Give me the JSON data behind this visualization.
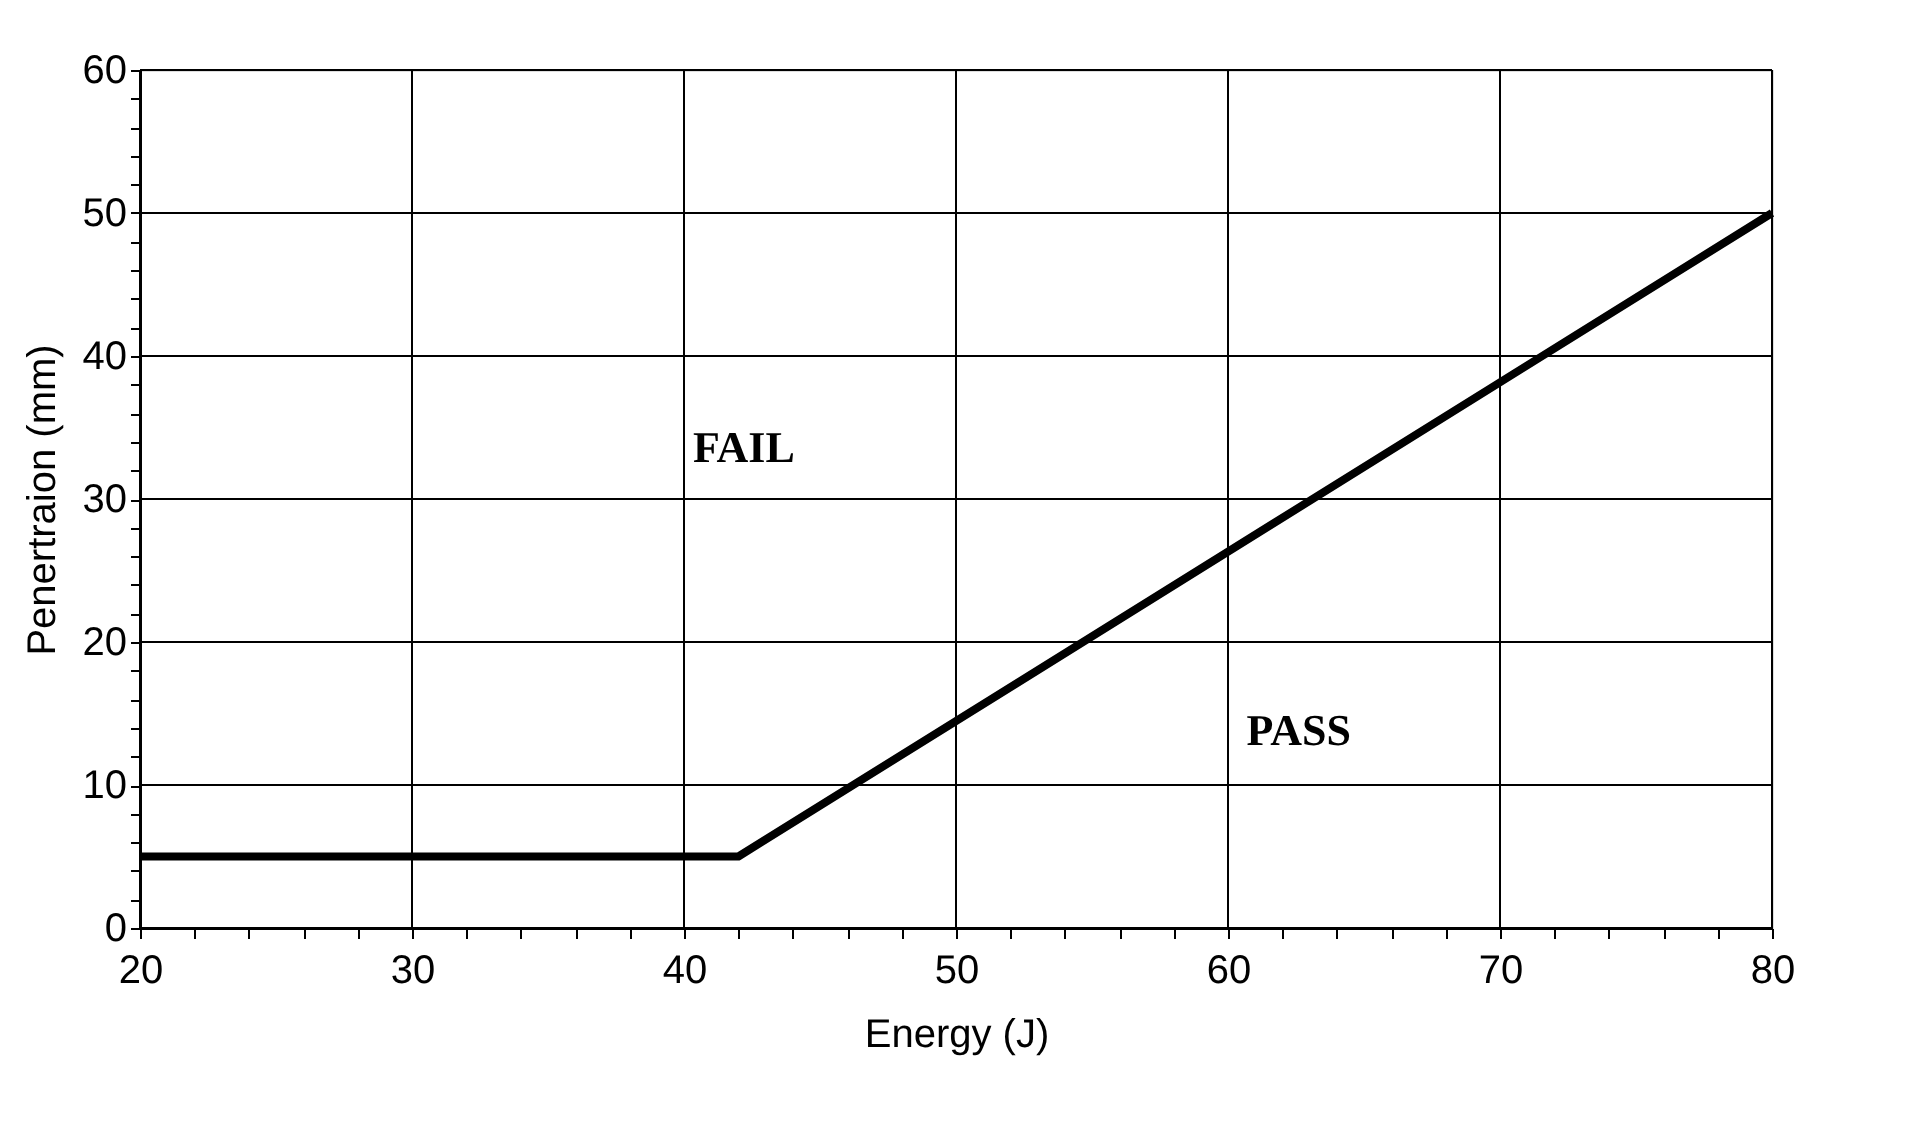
{
  "chart_data": {
    "type": "line",
    "xlabel": "Energy (J)",
    "ylabel": "Penertraion (mm)",
    "x": [
      20,
      42,
      80
    ],
    "series": [
      {
        "color": "#000000",
        "values": [
          5,
          5,
          50
        ]
      }
    ],
    "xlim": [
      20,
      80
    ],
    "ylim": [
      0,
      60
    ],
    "xticks": [
      20,
      {
        "value": 22,
        "label": null
      },
      {
        "value": 24,
        "label": null
      },
      {
        "value": 26,
        "label": null
      },
      {
        "value": 28,
        "label": null
      },
      30,
      {
        "value": 32,
        "label": null
      },
      {
        "value": 34,
        "label": null
      },
      {
        "value": 36,
        "label": null
      },
      {
        "value": 38,
        "label": null
      },
      40,
      {
        "value": 42,
        "label": null
      },
      {
        "value": 44,
        "label": null
      },
      {
        "value": 46,
        "label": null
      },
      {
        "value": 48,
        "label": null
      },
      50,
      {
        "value": 52,
        "label": null
      },
      {
        "value": 54,
        "label": null
      },
      {
        "value": 56,
        "label": null
      },
      {
        "value": 58,
        "label": null
      },
      60,
      {
        "value": 62,
        "label": null
      },
      {
        "value": 64,
        "label": null
      },
      {
        "value": 66,
        "label": null
      },
      {
        "value": 68,
        "label": null
      },
      70,
      {
        "value": 72,
        "label": null
      },
      {
        "value": 74,
        "label": null
      },
      {
        "value": 76,
        "label": null
      },
      {
        "value": 78,
        "label": null
      },
      80
    ],
    "yticks": [
      0,
      {
        "value": 2,
        "label": null
      },
      {
        "value": 4,
        "label": null
      },
      {
        "value": 6,
        "label": null
      },
      {
        "value": 8,
        "label": null
      },
      10,
      {
        "value": 12,
        "label": null
      },
      {
        "value": 14,
        "label": null
      },
      {
        "value": 16,
        "label": null
      },
      {
        "value": 18,
        "label": null
      },
      20,
      {
        "value": 22,
        "label": null
      },
      {
        "value": 24,
        "label": null
      },
      {
        "value": 26,
        "label": null
      },
      {
        "value": 28,
        "label": null
      },
      30,
      {
        "value": 32,
        "label": null
      },
      {
        "value": 34,
        "label": null
      },
      {
        "value": 36,
        "label": null
      },
      {
        "value": 38,
        "label": null
      },
      40,
      {
        "value": 42,
        "label": null
      },
      {
        "value": 44,
        "label": null
      },
      {
        "value": 46,
        "label": null
      },
      {
        "value": 48,
        "label": null
      },
      50,
      {
        "value": 52,
        "label": null
      },
      {
        "value": 54,
        "label": null
      },
      {
        "value": 56,
        "label": null
      },
      {
        "value": 58,
        "label": null
      },
      60
    ],
    "grid": true,
    "marker": "none",
    "line_style": "solid",
    "annotations": [
      "FAIL",
      "PASS"
    ]
  }
}
